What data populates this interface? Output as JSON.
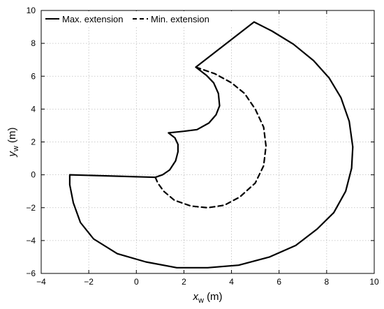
{
  "chart_data": {
    "type": "line",
    "title": "",
    "xlabel": {
      "main": "x",
      "subscript": "w",
      "unit": "(m)"
    },
    "ylabel": {
      "main": "y",
      "subscript": "w",
      "unit": "(m)"
    },
    "xlim": [
      -4,
      10
    ],
    "ylim": [
      -6,
      10
    ],
    "xticks": [
      -4,
      -2,
      0,
      2,
      4,
      6,
      8,
      10
    ],
    "yticks": [
      -6,
      -4,
      -2,
      0,
      2,
      4,
      6,
      8,
      10
    ],
    "grid": true,
    "legend_position": "top-left",
    "series": [
      {
        "name": "Max. extension",
        "style": "solid",
        "color": "#000000",
        "points": [
          [
            -2.8,
            0.0
          ],
          [
            0.8,
            -0.15
          ],
          [
            1.1,
            0.0
          ],
          [
            1.4,
            0.3
          ],
          [
            1.65,
            0.85
          ],
          [
            1.75,
            1.4
          ],
          [
            1.75,
            1.85
          ],
          [
            1.62,
            2.25
          ],
          [
            1.35,
            2.55
          ],
          [
            2.0,
            2.65
          ],
          [
            2.55,
            2.75
          ],
          [
            3.05,
            3.15
          ],
          [
            3.35,
            3.65
          ],
          [
            3.5,
            4.2
          ],
          [
            3.45,
            4.95
          ],
          [
            3.25,
            5.6
          ],
          [
            2.95,
            6.05
          ],
          [
            2.5,
            6.55
          ],
          [
            4.95,
            9.3
          ],
          [
            5.7,
            8.75
          ],
          [
            6.6,
            7.95
          ],
          [
            7.45,
            6.95
          ],
          [
            8.1,
            5.9
          ],
          [
            8.6,
            4.7
          ],
          [
            8.95,
            3.25
          ],
          [
            9.1,
            1.7
          ],
          [
            9.05,
            0.4
          ],
          [
            8.8,
            -1.0
          ],
          [
            8.3,
            -2.3
          ],
          [
            7.6,
            -3.3
          ],
          [
            6.7,
            -4.3
          ],
          [
            5.6,
            -5.0
          ],
          [
            4.3,
            -5.5
          ],
          [
            3.0,
            -5.65
          ],
          [
            1.7,
            -5.65
          ],
          [
            0.4,
            -5.3
          ],
          [
            -0.8,
            -4.8
          ],
          [
            -1.8,
            -3.9
          ],
          [
            -2.35,
            -2.9
          ],
          [
            -2.65,
            -1.7
          ],
          [
            -2.8,
            -0.6
          ],
          [
            -2.8,
            0.0
          ]
        ]
      },
      {
        "name": "Min. extension",
        "style": "dashed",
        "color": "#000000",
        "points": [
          [
            2.5,
            6.55
          ],
          [
            3.3,
            6.15
          ],
          [
            4.0,
            5.6
          ],
          [
            4.55,
            4.95
          ],
          [
            5.0,
            4.0
          ],
          [
            5.35,
            2.9
          ],
          [
            5.45,
            1.75
          ],
          [
            5.35,
            0.55
          ],
          [
            5.0,
            -0.5
          ],
          [
            4.35,
            -1.35
          ],
          [
            3.7,
            -1.85
          ],
          [
            3.0,
            -2.0
          ],
          [
            2.3,
            -1.9
          ],
          [
            1.6,
            -1.55
          ],
          [
            1.15,
            -1.0
          ],
          [
            0.9,
            -0.5
          ],
          [
            0.8,
            -0.15
          ]
        ]
      }
    ]
  }
}
